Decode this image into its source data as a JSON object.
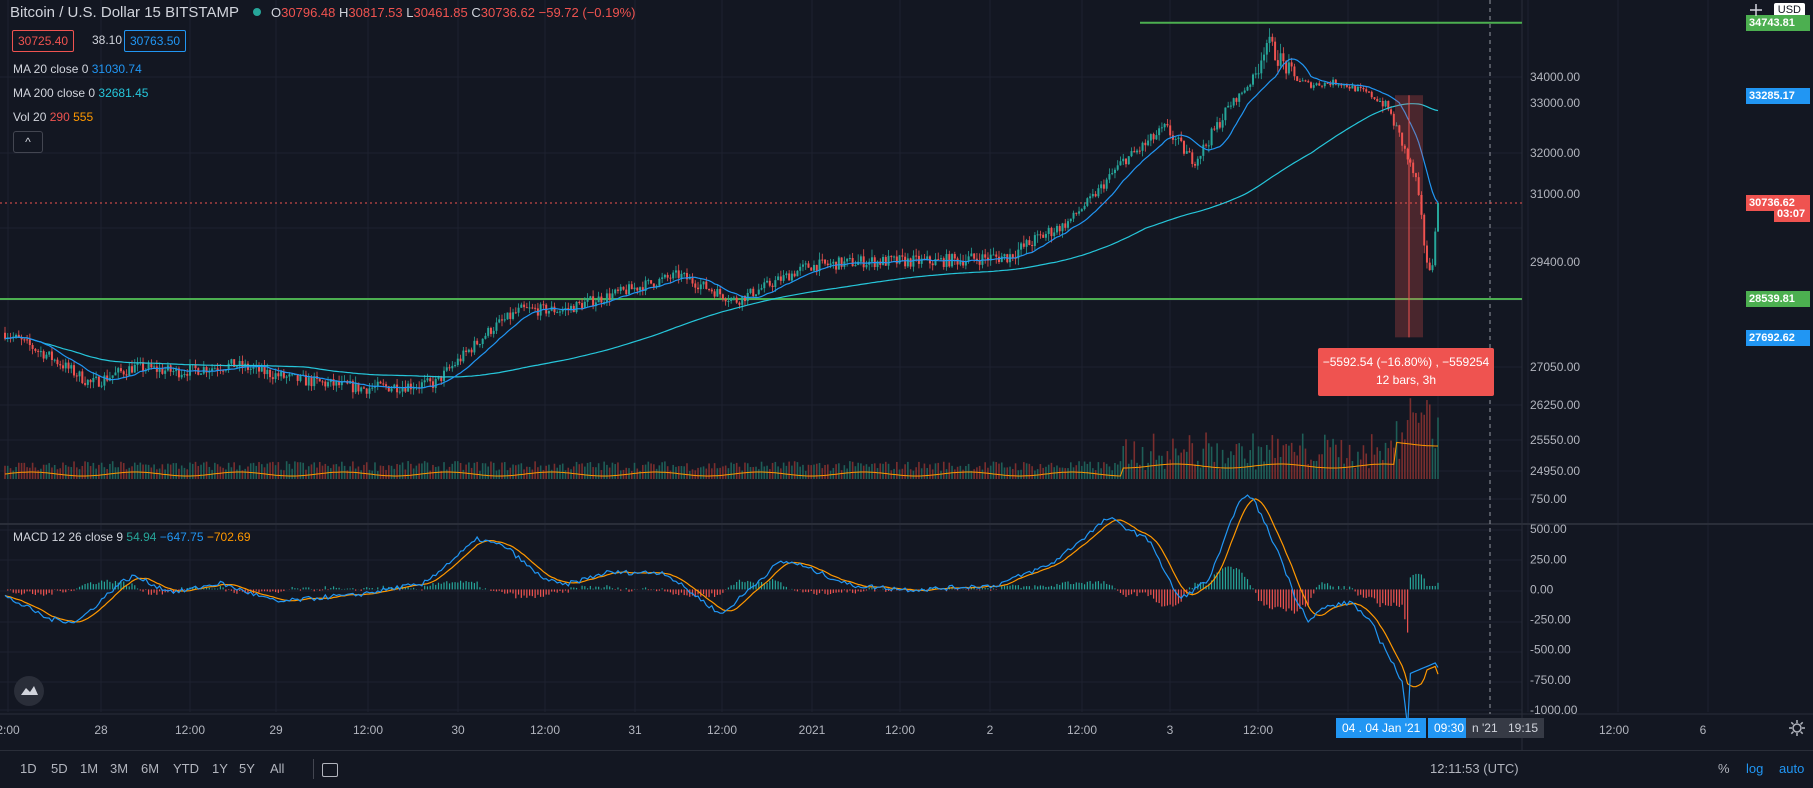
{
  "header": {
    "symbol": "Bitcoin / U.S. Dollar",
    "interval": "15",
    "exchange": "BITSTAMP",
    "open_label": "O",
    "open": "30796.48",
    "high_label": "H",
    "high": "30817.53",
    "low_label": "L",
    "low": "30461.85",
    "close_label": "C",
    "close": "30736.62",
    "change": "−59.72 (−0.19%)",
    "bid": "30725.40",
    "spread": "38.10",
    "ask": "30763.50"
  },
  "indicators": {
    "ma20_label": "MA 20 close 0",
    "ma20_value": "31030.74",
    "ma200_label": "MA 200 close 0",
    "ma200_value": "32681.45",
    "vol_label": "Vol 20",
    "vol_value1": "290",
    "vol_value2": "555",
    "collapse": "^",
    "macd_label": "MACD 12 26 close 9",
    "macd_hist": "54.94",
    "macd_line": "−647.75",
    "macd_signal": "−702.69"
  },
  "currency": "USD",
  "price_tags": [
    {
      "text": "34743.81",
      "value": 34743.81,
      "color": "#4caf50"
    },
    {
      "text": "33285.17",
      "value": 33285.17,
      "color": "#2196f3"
    },
    {
      "text": "30736.62",
      "value": 30736.62,
      "color": "#ef5350"
    },
    {
      "text": "03:07",
      "value": 30400,
      "color": "#ef5350"
    },
    {
      "text": "28539.81",
      "value": 28539.81,
      "color": "#4caf50"
    },
    {
      "text": "27692.62",
      "value": 27692.62,
      "color": "#2196f3"
    }
  ],
  "measure": {
    "line1": "−5592.54 (−16.80%) , −559254",
    "line2": "12 bars, 3h"
  },
  "x_axis_tooltip": {
    "date": "04 . 04 Jan '21",
    "time": "09:30",
    "tail": "n '21",
    "time2": "19:15"
  },
  "bottom_bar": {
    "timeframes": [
      "1D",
      "5D",
      "1M",
      "3M",
      "6M",
      "YTD",
      "1Y",
      "5Y",
      "All"
    ],
    "clock": "12:11:53 (UTC)",
    "percent": "%",
    "log": "log",
    "auto": "auto"
  },
  "colors": {
    "bg": "#131722",
    "up": "#26a69a",
    "down": "#ef5350",
    "ma20": "#2196f3",
    "ma200": "#26c6da",
    "signal": "#ff9800",
    "hline": "#4caf50"
  },
  "chart_data": [
    {
      "type": "candlestick",
      "title": "Bitcoin / U.S. Dollar, 15, BITSTAMP",
      "ylim": [
        24500,
        35500
      ],
      "y_ticks": [
        34000,
        33000,
        32000,
        31000,
        29400,
        27050,
        26250,
        25550,
        24950
      ],
      "x_ticks": [
        "2:00",
        "28",
        "12:00",
        "29",
        "12:00",
        "30",
        "12:00",
        "31",
        "12:00",
        "2021",
        "12:00",
        "2",
        "12:00",
        "3",
        "12:00",
        "12:00",
        "6"
      ],
      "horizontal_lines": [
        34743.81,
        28539.81
      ],
      "close_path_anchors": [
        [
          0,
          27800
        ],
        [
          0.03,
          27300
        ],
        [
          0.06,
          26700
        ],
        [
          0.09,
          27050
        ],
        [
          0.12,
          26950
        ],
        [
          0.16,
          27100
        ],
        [
          0.2,
          26800
        ],
        [
          0.25,
          26600
        ],
        [
          0.3,
          26700
        ],
        [
          0.34,
          27900
        ],
        [
          0.36,
          28300
        ],
        [
          0.39,
          28300
        ],
        [
          0.43,
          28700
        ],
        [
          0.47,
          29100
        ],
        [
          0.51,
          28500
        ],
        [
          0.56,
          29300
        ],
        [
          0.6,
          29400
        ],
        [
          0.65,
          29400
        ],
        [
          0.7,
          29500
        ],
        [
          0.74,
          30100
        ],
        [
          0.78,
          31800
        ],
        [
          0.81,
          32500
        ],
        [
          0.83,
          31800
        ],
        [
          0.86,
          33200
        ],
        [
          0.88,
          34500
        ],
        [
          0.91,
          33700
        ],
        [
          0.93,
          33800
        ],
        [
          0.95,
          33400
        ],
        [
          0.965,
          32900
        ],
        [
          0.975,
          32200
        ],
        [
          0.985,
          31300
        ],
        [
          0.99,
          29800
        ],
        [
          0.995,
          29000
        ],
        [
          1.0,
          30736.62
        ]
      ],
      "ma20_value": 31030.74,
      "ma200_value": 32681.45
    },
    {
      "type": "line",
      "title": "MACD 12 26 close 9",
      "ylim": [
        -1000,
        750
      ],
      "y_ticks": [
        750,
        500,
        250,
        0,
        -250,
        -500,
        -750,
        -1000
      ],
      "series": [
        {
          "name": "MACD",
          "last": -647.75
        },
        {
          "name": "Signal",
          "last": -702.69
        },
        {
          "name": "Histogram",
          "last": 54.94
        }
      ]
    }
  ]
}
